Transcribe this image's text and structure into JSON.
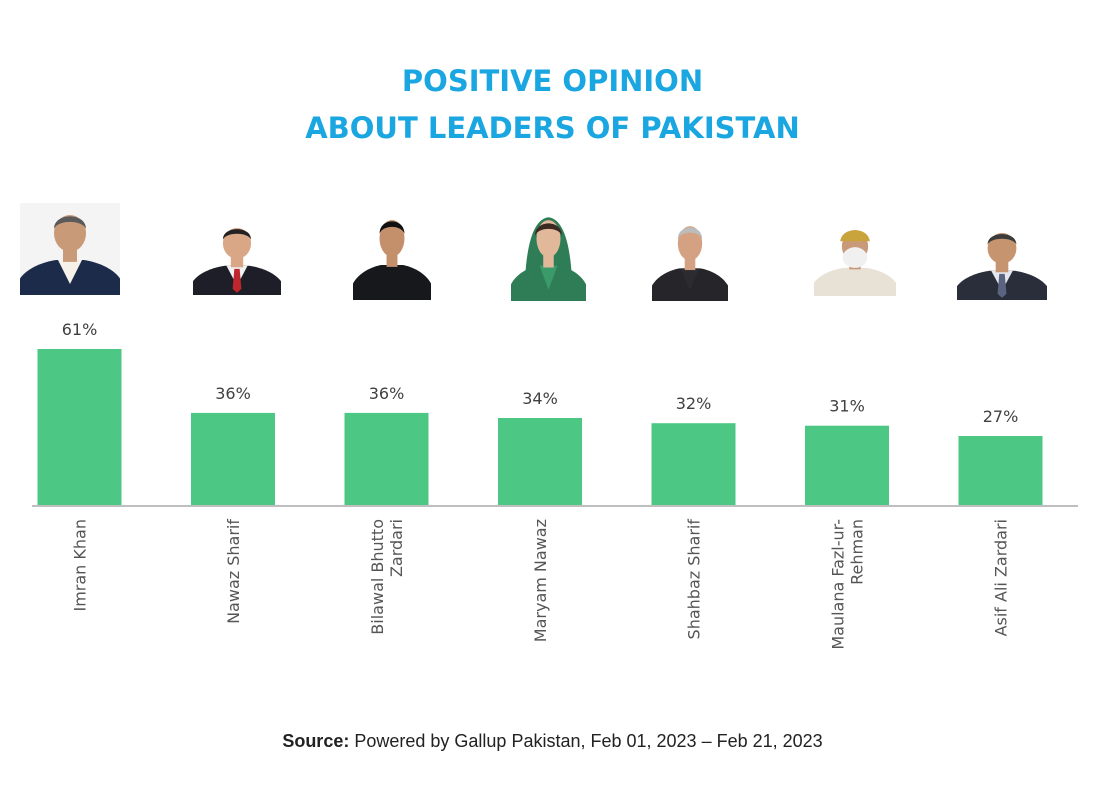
{
  "title_lines": [
    "POSITIVE OPINION",
    "ABOUT LEADERS OF PAKISTAN"
  ],
  "colors": {
    "title": "#1aa6e0",
    "bar": "#4cc784",
    "axis": "#bfbfbf"
  },
  "chart_data": {
    "type": "bar",
    "title": "POSITIVE OPINION ABOUT LEADERS OF PAKISTAN",
    "categories": [
      "Imran Khan",
      "Nawaz Sharif",
      "Bilawal Bhutto Zardari",
      "Maryam Nawaz",
      "Shahbaz Sharif",
      "Maulana Fazl-ur-Rehman",
      "Asif Ali Zardari"
    ],
    "category_label_lines": [
      [
        "Imran Khan"
      ],
      [
        "Nawaz Sharif"
      ],
      [
        "Bilawal Bhutto",
        "Zardari"
      ],
      [
        "Maryam Nawaz"
      ],
      [
        "Shahbaz Sharif"
      ],
      [
        "Maulana Fazl-ur-",
        "Rehman"
      ],
      [
        "Asif Ali Zardari"
      ]
    ],
    "values": [
      61,
      36,
      36,
      34,
      32,
      31,
      27
    ],
    "data_labels": [
      "61%",
      "36%",
      "36%",
      "34%",
      "32%",
      "31%",
      "27%"
    ],
    "unit": "%",
    "ylim": [
      0,
      70
    ],
    "grid": false,
    "legend": "none",
    "xlabel": "",
    "ylabel": ""
  },
  "source": {
    "label": "Source:",
    "text": "Powered by Gallup Pakistan, Feb 01, 2023 – Feb 21, 2023"
  }
}
